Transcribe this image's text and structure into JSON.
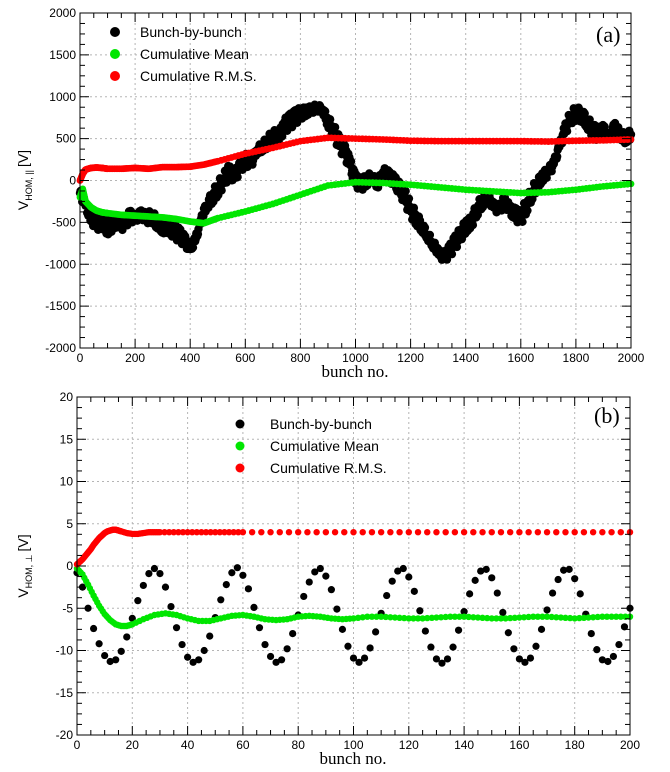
{
  "chart_data": [
    {
      "type": "scatter",
      "panel_label": "(a)",
      "xlabel": "bunch no.",
      "ylabel_main": "V",
      "ylabel_sub": "HOM, ||",
      "ylabel_unit": "[V]",
      "xlim": [
        0,
        2000
      ],
      "ylim": [
        -2000,
        2000
      ],
      "xticks": [
        0,
        200,
        400,
        600,
        800,
        1000,
        1200,
        1400,
        1600,
        1800,
        2000
      ],
      "yticks": [
        -2000,
        -1500,
        -1000,
        -500,
        0,
        500,
        1000,
        1500,
        2000
      ],
      "grid": true,
      "legend_position": "top-left",
      "series": [
        {
          "name": "Bunch-by-bunch",
          "color": "#000000",
          "marker_size": 4.2,
          "x": [
            0,
            20,
            40,
            60,
            80,
            100,
            120,
            140,
            160,
            180,
            200,
            220,
            240,
            260,
            280,
            300,
            320,
            340,
            360,
            380,
            400,
            420,
            440,
            460,
            480,
            500,
            520,
            540,
            560,
            580,
            600,
            620,
            640,
            660,
            680,
            700,
            720,
            740,
            760,
            780,
            800,
            820,
            840,
            860,
            880,
            900,
            920,
            940,
            960,
            980,
            1000,
            1020,
            1040,
            1060,
            1080,
            1100,
            1120,
            1140,
            1160,
            1180,
            1200,
            1220,
            1240,
            1260,
            1280,
            1300,
            1320,
            1340,
            1360,
            1380,
            1400,
            1420,
            1440,
            1460,
            1480,
            1500,
            1520,
            1540,
            1560,
            1580,
            1600,
            1620,
            1640,
            1660,
            1680,
            1700,
            1720,
            1740,
            1760,
            1780,
            1800,
            1820,
            1840,
            1860,
            1880,
            1900,
            1920,
            1940,
            1960,
            1980,
            2000
          ],
          "y": [
            -150,
            -300,
            -450,
            -520,
            -480,
            -560,
            -520,
            -480,
            -540,
            -420,
            -460,
            -400,
            -450,
            -430,
            -500,
            -560,
            -540,
            -600,
            -650,
            -720,
            -820,
            -700,
            -450,
            -300,
            -200,
            -100,
            0,
            100,
            50,
            150,
            250,
            200,
            350,
            400,
            450,
            550,
            500,
            650,
            700,
            750,
            800,
            820,
            850,
            870,
            850,
            700,
            600,
            450,
            350,
            200,
            0,
            -50,
            0,
            50,
            -50,
            100,
            50,
            0,
            -100,
            -200,
            -350,
            -450,
            -550,
            -650,
            -750,
            -850,
            -920,
            -850,
            -750,
            -650,
            -550,
            -500,
            -350,
            -250,
            -200,
            -300,
            -350,
            -250,
            -350,
            -400,
            -450,
            -300,
            -150,
            -50,
            50,
            100,
            200,
            400,
            600,
            750,
            800,
            780,
            700,
            600,
            550,
            600,
            500,
            650,
            550,
            500,
            550
          ]
        },
        {
          "name": "Cumulative Mean",
          "color": "#00e600",
          "marker_size": 3.4,
          "x": [
            0,
            10,
            20,
            40,
            60,
            80,
            100,
            150,
            200,
            250,
            300,
            350,
            400,
            450,
            500,
            600,
            700,
            800,
            900,
            1000,
            1100,
            1200,
            1300,
            1400,
            1500,
            1600,
            1700,
            1800,
            1900,
            2000
          ],
          "y": [
            -200,
            -100,
            -250,
            -320,
            -360,
            -380,
            -390,
            -410,
            -420,
            -430,
            -440,
            -460,
            -490,
            -510,
            -450,
            -370,
            -280,
            -170,
            -60,
            -20,
            -30,
            -50,
            -80,
            -110,
            -130,
            -150,
            -140,
            -110,
            -70,
            -40
          ]
        },
        {
          "name": "Cumulative R.M.S.",
          "color": "#ff0000",
          "marker_size": 3.4,
          "x": [
            0,
            10,
            20,
            40,
            60,
            80,
            100,
            150,
            200,
            250,
            300,
            350,
            400,
            450,
            500,
            600,
            700,
            800,
            900,
            1000,
            1100,
            1200,
            1300,
            1400,
            1500,
            1600,
            1700,
            1800,
            1900,
            2000
          ],
          "y": [
            0,
            80,
            130,
            150,
            155,
            150,
            140,
            140,
            150,
            140,
            160,
            160,
            165,
            190,
            230,
            320,
            390,
            470,
            510,
            500,
            490,
            475,
            470,
            470,
            470,
            470,
            465,
            475,
            480,
            490
          ]
        }
      ]
    },
    {
      "type": "scatter",
      "panel_label": "(b)",
      "xlabel": "bunch no.",
      "ylabel_main": "V",
      "ylabel_sub": "HOM, ⊥",
      "ylabel_unit": "[V]",
      "xlim": [
        0,
        200
      ],
      "ylim": [
        -20,
        20
      ],
      "xticks": [
        0,
        20,
        40,
        60,
        80,
        100,
        120,
        140,
        160,
        180,
        200
      ],
      "yticks": [
        -20,
        -15,
        -10,
        -5,
        0,
        5,
        10,
        15,
        20
      ],
      "grid": true,
      "legend_position": "top-center",
      "series": [
        {
          "name": "Bunch-by-bunch",
          "color": "#000000",
          "marker_size": 3.6,
          "x": [
            0,
            2,
            4,
            6,
            8,
            10,
            12,
            14,
            16,
            18,
            20,
            22,
            24,
            26,
            28,
            30,
            32,
            34,
            36,
            38,
            40,
            42,
            44,
            46,
            48,
            50,
            52,
            54,
            56,
            58,
            60,
            62,
            64,
            66,
            68,
            70,
            72,
            74,
            76,
            78,
            80,
            82,
            84,
            86,
            88,
            90,
            92,
            94,
            96,
            98,
            100,
            102,
            104,
            106,
            108,
            110,
            112,
            114,
            116,
            118,
            120,
            122,
            124,
            126,
            128,
            130,
            132,
            134,
            136,
            138,
            140,
            142,
            144,
            146,
            148,
            150,
            152,
            154,
            156,
            158,
            160,
            162,
            164,
            166,
            168,
            170,
            172,
            174,
            176,
            178,
            180,
            182,
            184,
            186,
            188,
            190,
            192,
            194,
            196,
            198,
            200
          ],
          "y": [
            -0.8,
            -2.5,
            -5.0,
            -7.4,
            -9.2,
            -10.6,
            -11.3,
            -11.1,
            -10.1,
            -8.4,
            -6.2,
            -4.1,
            -2.3,
            -0.9,
            -0.3,
            -0.9,
            -2.5,
            -4.8,
            -7.3,
            -9.3,
            -10.8,
            -11.4,
            -11.1,
            -10.0,
            -8.3,
            -6.1,
            -4.0,
            -2.2,
            -0.8,
            -0.2,
            -1.1,
            -2.7,
            -4.9,
            -7.3,
            -9.3,
            -10.7,
            -11.4,
            -11.1,
            -9.8,
            -8.0,
            -5.8,
            -3.6,
            -1.9,
            -0.7,
            -0.3,
            -1.2,
            -2.8,
            -5.1,
            -7.5,
            -9.5,
            -10.9,
            -11.4,
            -10.9,
            -9.7,
            -7.8,
            -5.6,
            -3.5,
            -1.8,
            -0.6,
            -0.3,
            -1.3,
            -3.0,
            -5.3,
            -7.7,
            -9.6,
            -11.0,
            -11.5,
            -11.0,
            -9.6,
            -7.6,
            -5.4,
            -3.3,
            -1.7,
            -0.6,
            -0.4,
            -1.4,
            -3.2,
            -5.5,
            -7.9,
            -9.8,
            -11.0,
            -11.4,
            -10.9,
            -9.5,
            -7.5,
            -5.2,
            -3.2,
            -1.6,
            -0.5,
            -0.4,
            -1.5,
            -3.3,
            -5.7,
            -8.0,
            -9.9,
            -11.1,
            -11.3,
            -10.7,
            -9.3,
            -7.2,
            -5.0
          ]
        },
        {
          "name": "Cumulative Mean",
          "color": "#00e600",
          "marker_size": 3.2,
          "x": [
            0,
            2,
            4,
            6,
            8,
            10,
            12,
            14,
            16,
            18,
            20,
            24,
            28,
            32,
            36,
            40,
            44,
            48,
            52,
            56,
            60,
            64,
            68,
            72,
            76,
            80,
            84,
            88,
            92,
            96,
            100,
            105,
            110,
            115,
            120,
            125,
            130,
            135,
            140,
            145,
            150,
            155,
            160,
            165,
            170,
            175,
            180,
            185,
            190,
            195,
            200
          ],
          "y": [
            -0.3,
            -1.0,
            -2.2,
            -3.5,
            -4.7,
            -5.7,
            -6.4,
            -6.9,
            -7.1,
            -7.1,
            -6.9,
            -6.3,
            -5.8,
            -5.6,
            -5.8,
            -6.2,
            -6.5,
            -6.5,
            -6.2,
            -5.9,
            -5.8,
            -6.0,
            -6.3,
            -6.4,
            -6.3,
            -6.0,
            -5.9,
            -6.0,
            -6.2,
            -6.3,
            -6.2,
            -6.0,
            -6.0,
            -6.1,
            -6.2,
            -6.2,
            -6.1,
            -6.0,
            -6.0,
            -6.1,
            -6.2,
            -6.2,
            -6.1,
            -6.0,
            -6.0,
            -6.1,
            -6.2,
            -6.1,
            -6.0,
            -6.0,
            -6.0
          ]
        },
        {
          "name": "Cumulative R.M.S.",
          "color": "#ff0000",
          "marker_size": 3.2,
          "x": [
            0,
            1,
            2,
            3,
            4,
            5,
            6,
            7,
            8,
            9,
            10,
            11,
            12,
            13,
            14,
            15,
            16,
            18,
            20,
            22,
            24,
            26,
            28,
            30,
            35,
            40,
            45,
            50,
            55,
            60,
            70,
            80,
            90,
            100,
            110,
            120,
            130,
            140,
            150,
            160,
            170,
            180,
            190,
            200
          ],
          "y": [
            0.2,
            0.5,
            0.8,
            1.2,
            1.6,
            2.0,
            2.5,
            2.9,
            3.3,
            3.6,
            3.9,
            4.1,
            4.2,
            4.3,
            4.3,
            4.2,
            4.1,
            3.9,
            3.8,
            3.8,
            3.9,
            4.0,
            4.0,
            4.0,
            4.0,
            4.0,
            4.0,
            4.0,
            4.0,
            4.0,
            4.0,
            4.0,
            4.0,
            4.0,
            4.0,
            4.0,
            4.0,
            4.0,
            4.0,
            4.0,
            4.0,
            4.0,
            4.0,
            4.0
          ]
        }
      ]
    }
  ]
}
